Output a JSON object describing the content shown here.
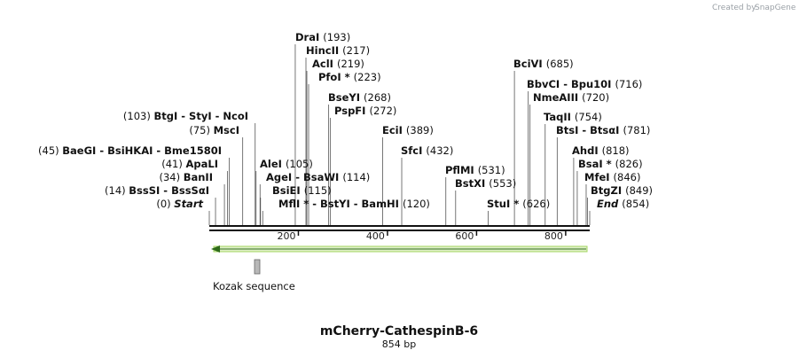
{
  "credit": {
    "prefix": "Created by",
    "brand": "SnapGene"
  },
  "map": {
    "name": "mCherry-CathespinB-6",
    "length_label": "854 bp",
    "length": 854,
    "ticks": [
      "200",
      "400",
      "600",
      "800"
    ],
    "tick_values": [
      200,
      400,
      600,
      800
    ]
  },
  "feature": {
    "name": "Kozak sequence",
    "arrow_color": "#a3d55f",
    "box_color": "#b8b8b8"
  },
  "left_labels": [
    {
      "pos": "(103)",
      "name": "BtgI  -  StyI   -  NcoI",
      "site": 103
    },
    {
      "pos": "(75)",
      "name": "MscI",
      "site": 75
    },
    {
      "pos": "(45)",
      "name": "BaeGI  - BsiHKAI  - Bme1580I",
      "site": 45
    },
    {
      "pos": "(41)",
      "name": "ApaLI",
      "site": 41
    },
    {
      "pos": "(34)",
      "name": "BanII",
      "site": 34
    },
    {
      "pos": "(14)",
      "name": "BssSI  - BssSαI",
      "site": 14
    },
    {
      "pos": "(0)",
      "name": "Start",
      "site": 0,
      "italic": true
    }
  ],
  "right_labels": [
    {
      "name": "DraI",
      "pos": "(193)",
      "site": 193
    },
    {
      "name": "HincII",
      "pos": "(217)",
      "site": 217
    },
    {
      "name": "AclI",
      "pos": "(219)",
      "site": 219
    },
    {
      "name": "PfoI *",
      "pos": "(223)",
      "site": 223
    },
    {
      "name": "BseYI",
      "pos": "(268)",
      "site": 268
    },
    {
      "name": "PspFI",
      "pos": "(272)",
      "site": 272
    },
    {
      "name": "EciI",
      "pos": "(389)",
      "site": 389
    },
    {
      "name": "SfcI",
      "pos": "(432)",
      "site": 432
    },
    {
      "name": "AleI",
      "pos": "(105)",
      "site": 105
    },
    {
      "name": "AgeI  - BsaWI",
      "pos": "(114)",
      "site": 114
    },
    {
      "name": "BsiEI",
      "pos": "(115)",
      "site": 115
    },
    {
      "name": "MflI *  - BstYI  - BamHI",
      "pos": "(120)",
      "site": 120
    },
    {
      "name": "PflMI",
      "pos": "(531)",
      "site": 531
    },
    {
      "name": "BstXI",
      "pos": "(553)",
      "site": 553
    },
    {
      "name": "StuI *",
      "pos": "(626)",
      "site": 626
    },
    {
      "name": "BciVI",
      "pos": "(685)",
      "site": 685
    },
    {
      "name": "BbvCI  - Bpu10I",
      "pos": "(716)",
      "site": 716
    },
    {
      "name": "NmeAIII",
      "pos": "(720)",
      "site": 720
    },
    {
      "name": "TaqII",
      "pos": "(754)",
      "site": 754
    },
    {
      "name": "BtsI  - BtsαI",
      "pos": "(781)",
      "site": 781
    },
    {
      "name": "AhdI",
      "pos": "(818)",
      "site": 818
    },
    {
      "name": "BsaI *",
      "pos": "(826)",
      "site": 826
    },
    {
      "name": "MfeI",
      "pos": "(846)",
      "site": 846
    },
    {
      "name": "BtgZI",
      "pos": "(849)",
      "site": 849
    },
    {
      "name": "End",
      "pos": "(854)",
      "site": 854,
      "italic": true
    }
  ]
}
